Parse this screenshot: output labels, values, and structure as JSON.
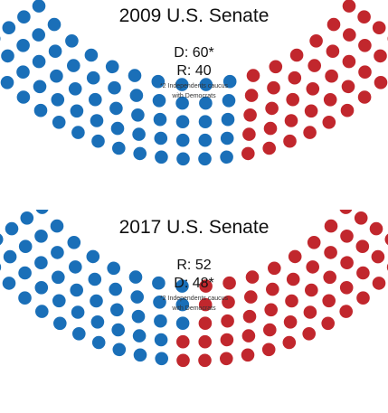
{
  "chart_data": [
    {
      "type": "parliament",
      "title": "2009 U.S. Senate",
      "lines": [
        "D: 60*",
        "R: 40"
      ],
      "note": [
        "*2 Independents caucus",
        "with Democrats"
      ],
      "series": [
        {
          "name": "D",
          "value": 60,
          "color": "#1a6fb8"
        },
        {
          "name": "R",
          "value": 40,
          "color": "#c1272d"
        }
      ],
      "total": 100
    },
    {
      "type": "parliament",
      "title": "2017 U.S. Senate",
      "lines": [
        "R: 52",
        "D: 48*"
      ],
      "note": [
        "*2 Independents caucus",
        "with Democrats"
      ],
      "series": [
        {
          "name": "D",
          "value": 48,
          "color": "#1a6fb8"
        },
        {
          "name": "R",
          "value": 52,
          "color": "#c1272d"
        }
      ],
      "total": 100
    }
  ]
}
